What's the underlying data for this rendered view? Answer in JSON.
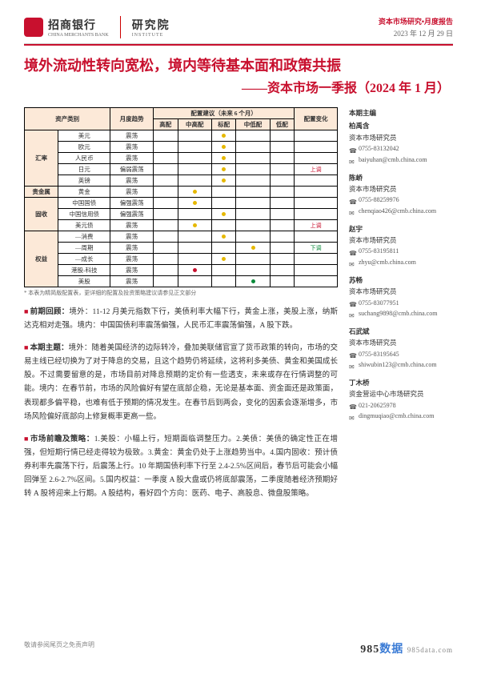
{
  "header": {
    "bank_cn": "招商银行",
    "bank_en": "CHINA MERCHANTS BANK",
    "institute_cn": "研究院",
    "institute_en": "INSTITUTE",
    "meta_top": "资本市场研究•月度报告",
    "meta_date": "2023 年 12 月 29 日"
  },
  "title": {
    "main": "境外流动性转向宽松，境内等待基本面和政策共振",
    "sub": "——资本市场一季报（2024 年 1 月）"
  },
  "alloc": {
    "col_asset": "资产类别",
    "col_trend": "月度趋势",
    "col_sugg_group": "配置建议（未来 6 个月）",
    "col_change": "配置变化",
    "sub_cols": [
      "高配",
      "中高配",
      "标配",
      "中低配",
      "低配"
    ],
    "groups": [
      {
        "name": "汇率",
        "rows": [
          {
            "asset": "美元",
            "trend": "震荡",
            "marks": [
              "",
              "",
              "y",
              "",
              ""
            ],
            "change": ""
          },
          {
            "asset": "欧元",
            "trend": "震荡",
            "marks": [
              "",
              "",
              "y",
              "",
              ""
            ],
            "change": ""
          },
          {
            "asset": "人民币",
            "trend": "震荡",
            "marks": [
              "",
              "",
              "y",
              "",
              ""
            ],
            "change": ""
          },
          {
            "asset": "日元",
            "trend": "偏弱震荡",
            "marks": [
              "",
              "",
              "y",
              "",
              ""
            ],
            "change": "上调"
          },
          {
            "asset": "英镑",
            "trend": "震荡",
            "marks": [
              "",
              "",
              "y",
              "",
              ""
            ],
            "change": ""
          }
        ]
      },
      {
        "name": "贵金属",
        "rows": [
          {
            "asset": "黄金",
            "trend": "震荡",
            "marks": [
              "",
              "y",
              "",
              "",
              ""
            ],
            "change": ""
          }
        ]
      },
      {
        "name": "固收",
        "rows": [
          {
            "asset": "中国国债",
            "trend": "偏强震荡",
            "marks": [
              "",
              "y",
              "",
              "",
              ""
            ],
            "change": ""
          },
          {
            "asset": "中国信用债",
            "trend": "偏强震荡",
            "marks": [
              "",
              "",
              "y",
              "",
              ""
            ],
            "change": ""
          },
          {
            "asset": "美元债",
            "trend": "震荡",
            "marks": [
              "",
              "y",
              "",
              "",
              ""
            ],
            "change": "上调"
          }
        ]
      },
      {
        "name": "权益",
        "rows": [
          {
            "asset": "—消费",
            "trend": "震荡",
            "marks": [
              "",
              "",
              "y",
              "",
              ""
            ],
            "change": ""
          },
          {
            "asset": "—周期",
            "trend": "震荡",
            "marks": [
              "",
              "",
              "",
              "y",
              ""
            ],
            "change": "下调"
          },
          {
            "asset": "—成长",
            "trend": "震荡",
            "marks": [
              "",
              "",
              "y",
              "",
              ""
            ],
            "change": ""
          },
          {
            "asset": "港股-科技",
            "trend": "震荡",
            "marks": [
              "",
              "r",
              "",
              "",
              ""
            ],
            "change": ""
          },
          {
            "asset": "美股",
            "trend": "震荡",
            "marks": [
              "",
              "",
              "",
              "g",
              ""
            ],
            "change": ""
          }
        ]
      }
    ],
    "note": "* 本表为精简版配置表，更详细的配置及投资策略建议请参见正文部分"
  },
  "sections": {
    "s1_label": "前期回顾：",
    "s1_text": "境外：11-12 月美元指数下行，美债利率大幅下行，黄金上涨，美股上涨，纳斯达克相对走强。境内：中国国债利率震荡偏强，人民币汇率震荡偏强，A 股下跌。",
    "s2_label": "本期主题：",
    "s2_text": "境外：随着美国经济的边际转冷，叠加美联储官宣了货币政策的转向，市场的交易主线已经切换为了对于降息的交易，且这个趋势仍将延续，这将利多美债、黄金和美国成长股。不过需要留意的是，市场目前对降息预期的定价有一些透支，未来或存在行情调整的可能。境内：在春节前，市场的风险偏好有望在底部企稳，无论是基本面、资金面还是政策面，表现都多偏平稳，也难有低于预期的情况发生。在春节后到两会，变化的因素会逐渐增多，市场风险偏好底部向上修复概率更高一些。",
    "s3_label": "市场前瞻及策略：",
    "s3_text": "1.美股：小幅上行，短期面临调整压力。2.美债：美债的确定性正在增强，但短期行情已经走得较为极致。3.黄金：黄金仍处于上涨趋势当中。4.国内固收：预计债券利率先震荡下行，后震荡上行。10 年期国债利率下行至 2.4-2.5%区间后，春节后可能会小幅回弹至 2.6-2.7%区间。5.国内权益：一季度 A 股大盘或仍将底部震荡，二季度随着经济预期好转 A 股将迎来上行期。A 股结构，看好四个方向：医药、电子、高股息、微盘股策略。"
  },
  "editors": {
    "heading": "本期主编",
    "people": [
      {
        "name": "柏禹含",
        "title": "资本市场研究员",
        "phone": "0755-83132042",
        "email": "baiyuhan@cmb.china.com"
      },
      {
        "name": "陈峤",
        "title": "资本市场研究员",
        "phone": "0755-88259976",
        "email": "chenqiao426@cmb.china.com"
      },
      {
        "name": "赵宇",
        "title": "资本市场研究员",
        "phone": "0755-83195811",
        "email": "zhyu@cmb.china.com"
      },
      {
        "name": "苏畅",
        "title": "资本市场研究员",
        "phone": "0755-83077951",
        "email": "suchang9898@cmb.china.com"
      },
      {
        "name": "石武斌",
        "title": "资本市场研究员",
        "phone": "0755-83195645",
        "email": "shiwubin123@cmb.china.com"
      },
      {
        "name": "丁木桥",
        "title": "资金营运中心市场研究员",
        "phone": "021-20625978",
        "email": "dingmuqiao@cmb.china.com"
      }
    ]
  },
  "footer": {
    "left": "敬请参阅尾页之免责声明",
    "wm1": "985",
    "wm2": "数据",
    "wm3": "985data.com"
  },
  "colors": {
    "brand_red": "#c8102e",
    "th_bg": "#fce9d8",
    "green": "#0a8a3a",
    "yellow": "#e6b800",
    "blue": "#3a7bd5"
  }
}
